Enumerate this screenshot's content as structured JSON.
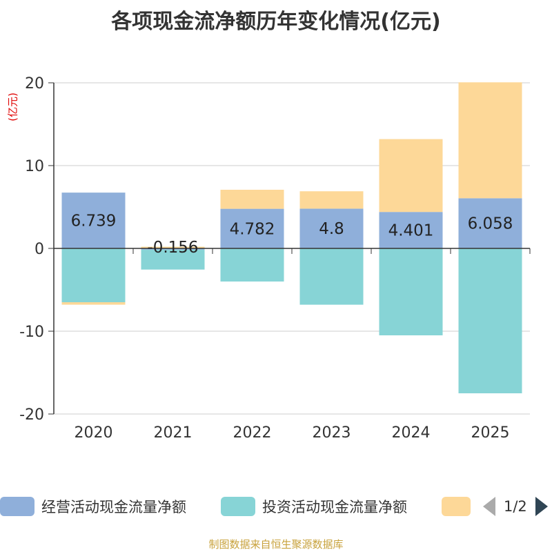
{
  "title": "各项现金流净额历年变化情况(亿元)",
  "unit_label": "(亿元)",
  "source": "制图数据来自恒生聚源数据库",
  "legend": {
    "items": [
      {
        "label": "经营活动现金流量净额",
        "color": "#8fafda"
      },
      {
        "label": "投资活动现金流量净额",
        "color": "#87d4d6"
      },
      {
        "label": "",
        "color": "#fdd898"
      }
    ],
    "page_text": "1/2"
  },
  "chart_data": {
    "type": "bar",
    "stacked": true,
    "title": "各项现金流净额历年变化情况(亿元)",
    "ylabel": "(亿元)",
    "ylim": [
      -20,
      20
    ],
    "yticks": [
      -20,
      -10,
      0,
      10,
      20
    ],
    "grid": true,
    "legend_position": "bottom",
    "categories": [
      "2020",
      "2021",
      "2022",
      "2023",
      "2024",
      "2025"
    ],
    "series": [
      {
        "name": "经营活动现金流量净额",
        "color": "#8fafda",
        "values": [
          6.739,
          -0.156,
          4.782,
          4.8,
          4.401,
          6.058
        ]
      },
      {
        "name": "投资活动现金流量净额",
        "color": "#87d4d6",
        "values": [
          -6.5,
          -2.4,
          -4.0,
          -6.8,
          -10.5,
          -17.5
        ]
      },
      {
        "name": "",
        "color": "#fdd898",
        "values": [
          -0.3,
          0.2,
          2.3,
          2.1,
          8.8,
          14.0
        ]
      }
    ],
    "data_labels": [
      "6.739",
      "-0.156",
      "4.782",
      "4.8",
      "4.401",
      "6.058"
    ]
  }
}
